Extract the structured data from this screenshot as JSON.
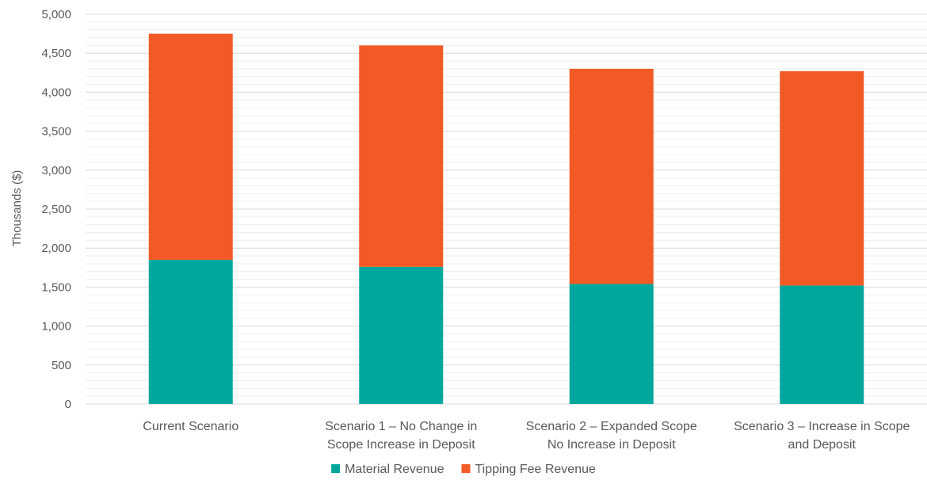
{
  "chart_data": {
    "type": "bar",
    "stacked": true,
    "categories": [
      [
        "Current Scenario"
      ],
      [
        "Scenario 1 – No Change in",
        "Scope Increase in Deposit"
      ],
      [
        "Scenario 2 – Expanded Scope",
        "No Increase in Deposit"
      ],
      [
        "Scenario 3 – Increase in Scope",
        "and Deposit"
      ]
    ],
    "series": [
      {
        "name": "Material Revenue",
        "color": "#00A79D",
        "values": [
          1850,
          1760,
          1540,
          1520
        ]
      },
      {
        "name": "Tipping Fee Revenue",
        "color": "#F15A24",
        "values": [
          2900,
          2840,
          2760,
          2750
        ]
      }
    ],
    "ylabel": "Thousands ($)",
    "ylim": [
      0,
      5000
    ],
    "yticks": [
      {
        "value": 0,
        "label": "0"
      },
      {
        "value": 500,
        "label": "500"
      },
      {
        "value": 1000,
        "label": "1,000"
      },
      {
        "value": 1500,
        "label": "1,500"
      },
      {
        "value": 2000,
        "label": "2,000"
      },
      {
        "value": 2500,
        "label": "2,500"
      },
      {
        "value": 3000,
        "label": "3,000"
      },
      {
        "value": 3500,
        "label": "3,500"
      },
      {
        "value": 4000,
        "label": "4,000"
      },
      {
        "value": 4500,
        "label": "4,500"
      },
      {
        "value": 5000,
        "label": "5,000"
      }
    ],
    "grid": true,
    "legend": "bottom"
  }
}
